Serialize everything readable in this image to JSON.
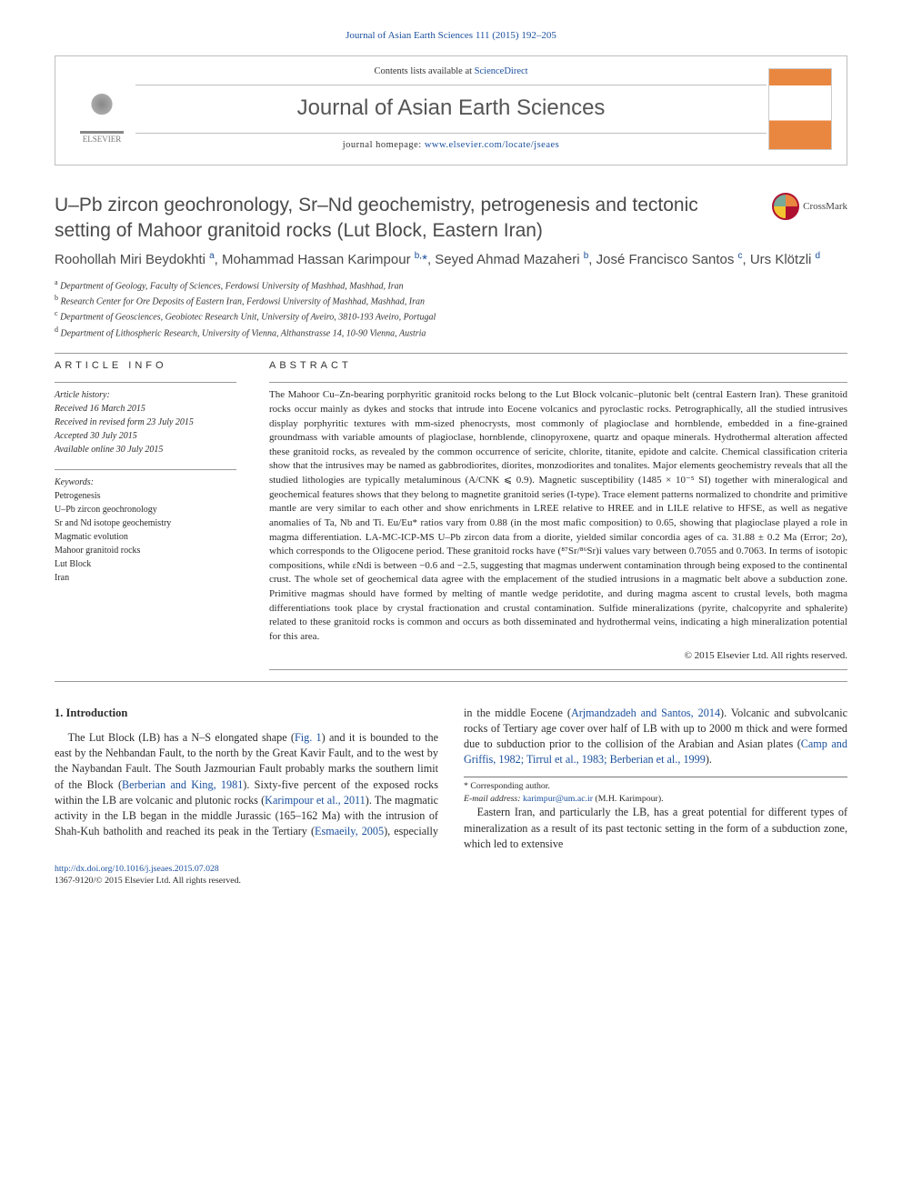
{
  "citation_line": "Journal of Asian Earth Sciences 111 (2015) 192–205",
  "header": {
    "contents_prefix": "Contents lists available at ",
    "contents_link": "ScienceDirect",
    "journal_name": "Journal of Asian Earth Sciences",
    "homepage_prefix": "journal homepage: ",
    "homepage_url": "www.elsevier.com/locate/jseaes",
    "publisher": "ELSEVIER"
  },
  "title": "U–Pb zircon geochronology, Sr–Nd geochemistry, petrogenesis and tectonic setting of Mahoor granitoid rocks (Lut Block, Eastern Iran)",
  "crossmark": "CrossMark",
  "authors_html": "Roohollah Miri Beydokhti <sup>a</sup>, Mohammad Hassan Karimpour <sup>b,</sup><span class='cor'>*</span>, Seyed Ahmad Mazaheri <sup>b</sup>, José Francisco Santos <sup>c</sup>, Urs Klötzli <sup>d</sup>",
  "affiliations": [
    "a Department of Geology, Faculty of Sciences, Ferdowsi University of Mashhad, Mashhad, Iran",
    "b Research Center for Ore Deposits of Eastern Iran, Ferdowsi University of Mashhad, Mashhad, Iran",
    "c Department of Geosciences, Geobiotec Research Unit, University of Aveiro, 3810-193 Aveiro, Portugal",
    "d Department of Lithospheric Research, University of Vienna, Althanstrasse 14, 10-90 Vienna, Austria"
  ],
  "article_info": {
    "heading": "ARTICLE INFO",
    "history_label": "Article history:",
    "history": [
      "Received 16 March 2015",
      "Received in revised form 23 July 2015",
      "Accepted 30 July 2015",
      "Available online 30 July 2015"
    ],
    "keywords_label": "Keywords:",
    "keywords": [
      "Petrogenesis",
      "U–Pb zircon geochronology",
      "Sr and Nd isotope geochemistry",
      "Magmatic evolution",
      "Mahoor granitoid rocks",
      "Lut Block",
      "Iran"
    ]
  },
  "abstract": {
    "heading": "ABSTRACT",
    "text": "The Mahoor Cu–Zn-bearing porphyritic granitoid rocks belong to the Lut Block volcanic–plutonic belt (central Eastern Iran). These granitoid rocks occur mainly as dykes and stocks that intrude into Eocene volcanics and pyroclastic rocks. Petrographically, all the studied intrusives display porphyritic textures with mm-sized phenocrysts, most commonly of plagioclase and hornblende, embedded in a fine-grained groundmass with variable amounts of plagioclase, hornblende, clinopyroxene, quartz and opaque minerals. Hydrothermal alteration affected these granitoid rocks, as revealed by the common occurrence of sericite, chlorite, titanite, epidote and calcite. Chemical classification criteria show that the intrusives may be named as gabbrodiorites, diorites, monzodiorites and tonalites. Major elements geochemistry reveals that all the studied lithologies are typically metaluminous (A/CNK ⩽ 0.9). Magnetic susceptibility (1485 × 10⁻⁵ SI) together with mineralogical and geochemical features shows that they belong to magnetite granitoid series (I-type). Trace element patterns normalized to chondrite and primitive mantle are very similar to each other and show enrichments in LREE relative to HREE and in LILE relative to HFSE, as well as negative anomalies of Ta, Nb and Ti. Eu/Eu* ratios vary from 0.88 (in the most mafic composition) to 0.65, showing that plagioclase played a role in magma differentiation. LA-MC-ICP-MS U–Pb zircon data from a diorite, yielded similar concordia ages of ca. 31.88 ± 0.2 Ma (Error; 2σ), which corresponds to the Oligocene period. These granitoid rocks have (⁸⁷Sr/⁸⁶Sr)i values vary between 0.7055 and 0.7063. In terms of isotopic compositions, while εNdi is between −0.6 and −2.5, suggesting that magmas underwent contamination through being exposed to the continental crust. The whole set of geochemical data agree with the emplacement of the studied intrusions in a magmatic belt above a subduction zone. Primitive magmas should have formed by melting of mantle wedge peridotite, and during magma ascent to crustal levels, both magma differentiations took place by crystal fractionation and crustal contamination. Sulfide mineralizations (pyrite, chalcopyrite and sphalerite) related to these granitoid rocks is common and occurs as both disseminated and hydrothermal veins, indicating a high mineralization potential for this area.",
    "copyright": "© 2015 Elsevier Ltd. All rights reserved."
  },
  "intro": {
    "heading": "1. Introduction",
    "col1_p1_a": "The Lut Block (LB) has a N–S elongated shape (",
    "col1_fig": "Fig. 1",
    "col1_p1_b": ") and it is bounded to the east by the Nehbandan Fault, to the north by the Great Kavir Fault, and to the west by the Naybandan Fault. The South Jazmourian Fault probably marks the southern limit of the Block (",
    "col1_cite1": "Berberian and King, 1981",
    "col1_p1_c": "). Sixty-five percent of the exposed rocks within the LB are volcanic and plutonic rocks (",
    "col1_cite2": "Karimpour",
    "col2_cite1": "et al., 2011",
    "col2_p1_a": "). The magmatic activity in the LB began in the middle Jurassic (165–162 Ma) with the intrusion of Shah-Kuh batholith and reached its peak in the Tertiary (",
    "col2_cite2": "Esmaeily, 2005",
    "col2_p1_b": "), especially in the middle Eocene (",
    "col2_cite3": "Arjmandzadeh and Santos, 2014",
    "col2_p1_c": "). Volcanic and subvolcanic rocks of Tertiary age cover over half of LB with up to 2000 m thick and were formed due to subduction prior to the collision of the Arabian and Asian plates (",
    "col2_cite4": "Camp and Griffis, 1982; Tirrul et al., 1983; Berberian et al., 1999",
    "col2_p1_d": ").",
    "col2_p2": "Eastern Iran, and particularly the LB, has a great potential for different types of mineralization as a result of its past tectonic setting in the form of a subduction zone, which led to extensive"
  },
  "footnote": {
    "corresponding": "* Corresponding author.",
    "email_label": "E-mail address: ",
    "email": "karimpur@um.ac.ir",
    "email_suffix": " (M.H. Karimpour)."
  },
  "footer": {
    "doi": "http://dx.doi.org/10.1016/j.jseaes.2015.07.028",
    "issn": "1367-9120/© 2015 Elsevier Ltd. All rights reserved."
  }
}
